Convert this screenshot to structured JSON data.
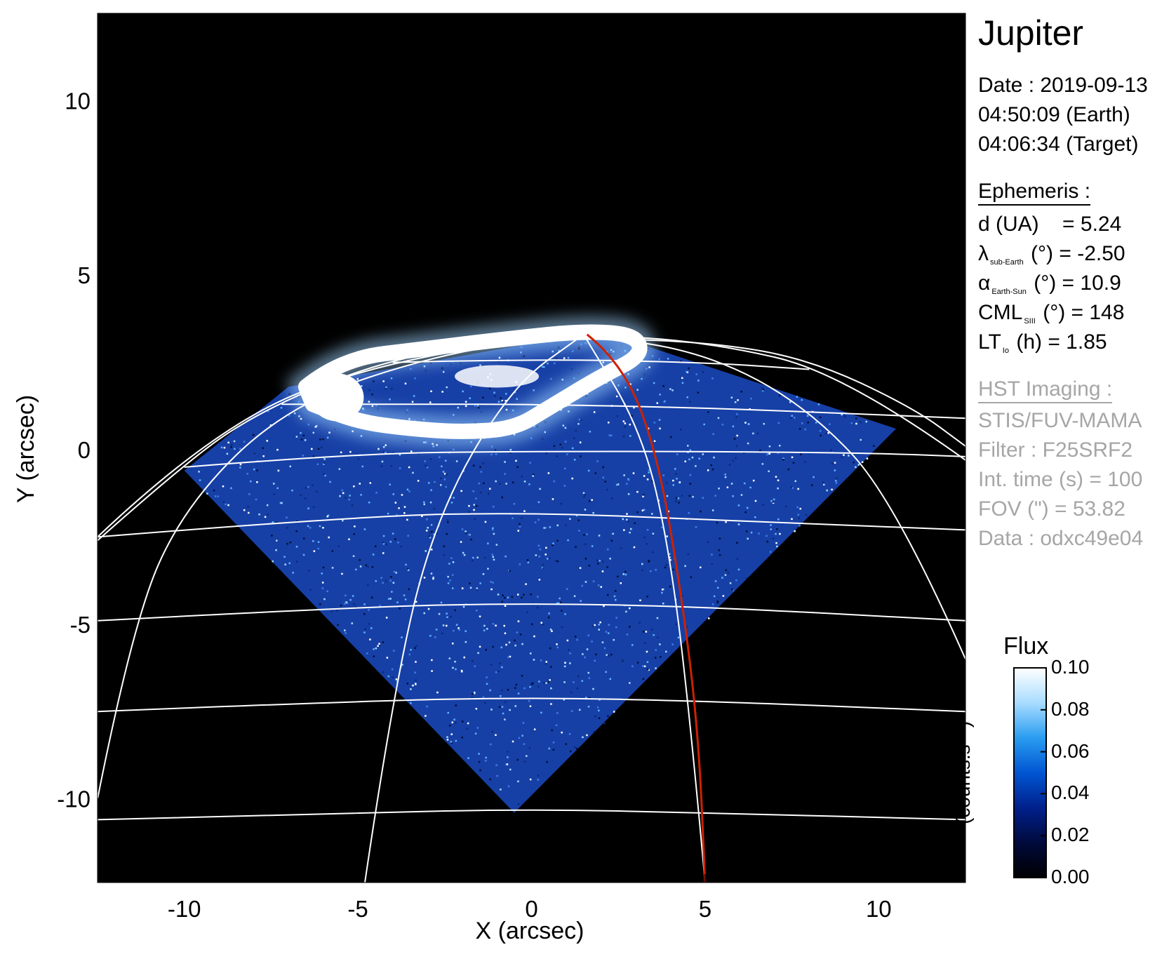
{
  "figure": {
    "title": "Jupiter",
    "date_line": "Date : 2019-09-13",
    "earth_time": "04:50:09 (Earth)",
    "target_time": "04:06:34 (Target)"
  },
  "ephemeris": {
    "heading": "Ephemeris :",
    "d_label": "d (UA)",
    "d_value": "= 5.24",
    "lat_symbol": "λ",
    "lat_sub": "sub-Earth",
    "lat_rest": "(°) = -2.50",
    "phase_symbol": "α",
    "phase_sub": "Earth-Sun",
    "phase_rest": "(°) = 10.9",
    "cml_symbol": "CML",
    "cml_sub": "SIII",
    "cml_rest": "(°) = 148",
    "lt_symbol": "LT",
    "lt_sub": "Io",
    "lt_rest": "(h) = 1.85"
  },
  "imaging": {
    "heading": "HST Imaging :",
    "instrument": "STIS/FUV-MAMA",
    "filter": "Filter : F25SRF2",
    "int_time": "Int. time (s) = 100",
    "fov": "FOV (\") = 53.82",
    "data_id": "Data : odxc49e04"
  },
  "colorbar": {
    "title": "Flux",
    "unit": "(counts.s⁻¹)",
    "ticks": [
      "0.10",
      "0.08",
      "0.06",
      "0.04",
      "0.02",
      "0.00"
    ],
    "range": [
      0.0,
      0.1
    ],
    "colors": [
      "#000000",
      "#000a3c",
      "#00208c",
      "#0055d2",
      "#2a9df0",
      "#a8dcff",
      "#ffffff"
    ]
  },
  "chart_data": {
    "type": "heatmap",
    "xlabel": "X (arcsec)",
    "ylabel": "Y (arcsec)",
    "xlim": [
      -12.5,
      12.5
    ],
    "ylim": [
      -12.4,
      12.5
    ],
    "xticks": [
      -10,
      -5,
      0,
      5,
      10
    ],
    "yticks": [
      10,
      5,
      0,
      -5,
      -10
    ],
    "xtick_labels": [
      "-10",
      "-5",
      "0",
      "5",
      "10"
    ],
    "ytick_labels": [
      "10",
      "5",
      "0",
      "-5",
      "-10"
    ],
    "background_color": "#000000",
    "grid_color": "#ffffff",
    "io_footprint_color": "#cc2200",
    "detector_fov_vertices": [
      [
        -10,
        -0.6
      ],
      [
        -0.5,
        -10.4
      ],
      [
        10.5,
        0.6
      ],
      [
        2.0,
        3.4
      ],
      [
        -7.0,
        1.8
      ]
    ],
    "auroral_oval": [
      [
        -6.5,
        1.8
      ],
      [
        -5.5,
        2.6
      ],
      [
        -3.0,
        2.9
      ],
      [
        -0.5,
        3.2
      ],
      [
        1.5,
        3.4
      ],
      [
        3.0,
        3.3
      ],
      [
        3.2,
        2.7
      ],
      [
        2.0,
        2.1
      ],
      [
        0.5,
        1.2
      ],
      [
        -0.5,
        0.6
      ],
      [
        -2.0,
        0.5
      ],
      [
        -3.5,
        0.6
      ],
      [
        -5.0,
        0.8
      ],
      [
        -6.3,
        1.3
      ]
    ],
    "io_footprint": [
      [
        1.6,
        3.3
      ],
      [
        2.6,
        2.5
      ],
      [
        3.6,
        0.0
      ],
      [
        4.3,
        -4.0
      ],
      [
        4.8,
        -8.0
      ],
      [
        5.0,
        -12.4
      ]
    ],
    "parallels": [
      [
        [
          -12.5,
          -2.5
        ],
        [
          -5.0,
          -1.9
        ],
        [
          0.0,
          -1.8
        ],
        [
          5.0,
          -2.0
        ],
        [
          12.5,
          -2.3
        ]
      ],
      [
        [
          -12.5,
          -4.9
        ],
        [
          -5.0,
          -4.5
        ],
        [
          0.0,
          -4.4
        ],
        [
          5.0,
          -4.5
        ],
        [
          12.5,
          -4.9
        ]
      ],
      [
        [
          -12.5,
          -7.5
        ],
        [
          -5.0,
          -7.2
        ],
        [
          0.0,
          -7.1
        ],
        [
          5.0,
          -7.2
        ],
        [
          12.5,
          -7.5
        ]
      ],
      [
        [
          -12.5,
          -10.6
        ],
        [
          -5.0,
          -10.4
        ],
        [
          0.0,
          -10.3
        ],
        [
          5.0,
          -10.4
        ],
        [
          12.5,
          -10.6
        ]
      ],
      [
        [
          -10.0,
          -0.5
        ],
        [
          -5.0,
          -0.1
        ],
        [
          0.0,
          -0.05
        ],
        [
          5.0,
          -0.05
        ],
        [
          10.0,
          -0.1
        ],
        [
          12.5,
          -0.2
        ]
      ],
      [
        [
          -7.2,
          1.3
        ],
        [
          -3.0,
          1.3
        ],
        [
          0.0,
          1.3
        ],
        [
          5.0,
          1.2
        ],
        [
          10.0,
          1.0
        ],
        [
          12.5,
          0.9
        ]
      ],
      [
        [
          -4.0,
          2.5
        ],
        [
          0.0,
          2.6
        ],
        [
          5.0,
          2.5
        ],
        [
          8.0,
          2.3
        ]
      ],
      [
        [
          -12.5,
          -2.6
        ],
        [
          -10.0,
          -0.4
        ],
        [
          -8.0,
          1.0
        ],
        [
          -5.0,
          2.3
        ],
        [
          -2.0,
          3.0
        ],
        [
          1.0,
          3.2
        ],
        [
          5.0,
          3.1
        ],
        [
          8.0,
          2.6
        ],
        [
          11.0,
          1.2
        ],
        [
          12.5,
          0.1
        ]
      ]
    ],
    "meridians": [
      [
        [
          -12.5,
          -10.0
        ],
        [
          -11.5,
          -5.0
        ],
        [
          -10.0,
          -1.6
        ],
        [
          -7.0,
          1.3
        ],
        [
          -2.5,
          2.8
        ],
        [
          1.5,
          3.3
        ]
      ],
      [
        [
          -4.8,
          -12.4
        ],
        [
          -4.0,
          -7.0
        ],
        [
          -2.8,
          -2.0
        ],
        [
          -0.6,
          1.8
        ],
        [
          1.5,
          3.3
        ]
      ],
      [
        [
          5.0,
          -12.4
        ],
        [
          4.6,
          -8.0
        ],
        [
          4.0,
          -3.0
        ],
        [
          3.2,
          0.5
        ],
        [
          1.5,
          3.3
        ]
      ],
      [
        [
          12.5,
          -6.0
        ],
        [
          10.5,
          -1.5
        ],
        [
          8.0,
          1.2
        ],
        [
          5.0,
          2.8
        ],
        [
          1.5,
          3.3
        ]
      ],
      [
        [
          -12.5,
          -2.5
        ],
        [
          -9.0,
          0.8
        ],
        [
          -4.0,
          2.6
        ],
        [
          1.5,
          3.3
        ]
      ],
      [
        [
          12.5,
          -0.3
        ],
        [
          9.0,
          2.2
        ],
        [
          5.0,
          3.1
        ],
        [
          1.5,
          3.3
        ]
      ]
    ]
  }
}
